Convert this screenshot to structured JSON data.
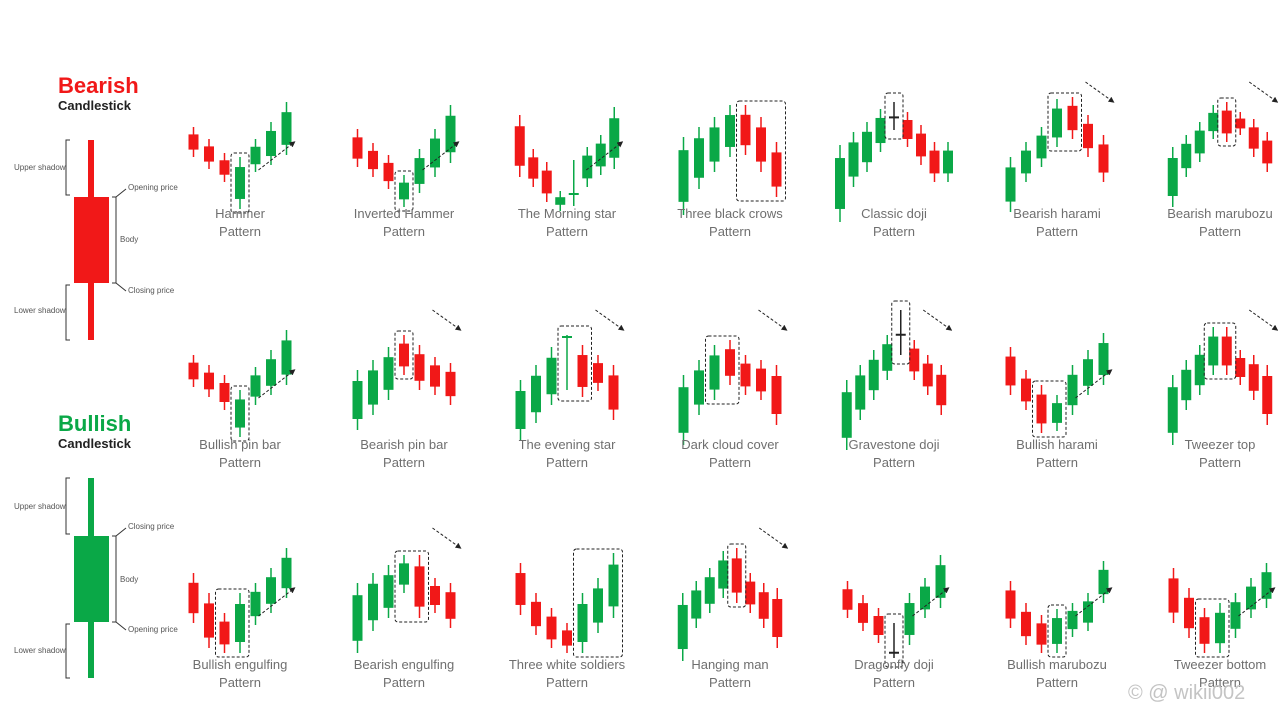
{
  "colors": {
    "bull": "#0aa847",
    "bear": "#f11818",
    "text": "#6f6f6f"
  },
  "bearish": {
    "title": "Bearish",
    "subtitle": "Candlestick",
    "upper_shadow": "Upper shadow",
    "lower_shadow": "Lower shadow",
    "top_price": "Opening price",
    "bottom_price": "Closing price",
    "body": "Body"
  },
  "bullish": {
    "title": "Bullish",
    "subtitle": "Candlestick",
    "upper_shadow": "Upper shadow",
    "lower_shadow": "Lower shadow",
    "top_price": "Closing price",
    "bottom_price": "Opening price",
    "body": "Body"
  },
  "patterns": [
    {
      "name": "Hammer",
      "sub": "Pattern",
      "arrow": "up",
      "candles": "r:10-30,r:22-42,r:36-55,g:40-82h,g:22-45,g:5-38,g:-15-28"
    },
    {
      "name": "Inverted Hammer",
      "sub": "Pattern",
      "arrow": "up",
      "candles": "r:12-40,r:26-50,r:38-62,g:58-80h,g:32-66,g:12-50,g:-12-36"
    },
    {
      "name": "The Morning star",
      "sub": "Pattern",
      "arrow": "up",
      "candles": "r:-2-50,r:32-60,r:45-75,g:74-84,G:38-84,g:30-60,g:18-48,g:-10-42"
    },
    {
      "name": "Three black crows",
      "sub": "Pattern",
      "arrow": "none",
      "candles": "g:20-88,g:10-62,g:0-45,g:-12-30,r:-12-28h,r:0-45h,r:25-70h"
    },
    {
      "name": "Classic doji",
      "sub": "Pattern",
      "arrow": "none",
      "candles": "g:28-95,g:15-60,g:5-45,g:-8-25,d:-20-8h,r:-5-20,r:8-38,r:25-55,g:25-55"
    },
    {
      "name": "Bearish harami",
      "sub": "Pattern",
      "arrow": "down",
      "candles": "g:40-85,g:25-55,g:10-40,g:-18-20h,r:-20-12h,r:-2-30,r:18-55"
    },
    {
      "name": "Bearish marubozu",
      "sub": "Pattern",
      "arrow": "down",
      "candles": "g:30-80,g:18-50,g:5-35,g:-12-12,r:-15-15h,r:-5-8,r:2-30,r:15-45"
    },
    {
      "name": "Bullish pin bar",
      "sub": "Pattern",
      "arrow": "up",
      "candles": "r:10-32,r:20-42,r:30-55,g:45-82h,g:22-50,g:5-40,g:-15-30"
    },
    {
      "name": "Bearish pin bar",
      "sub": "Pattern",
      "arrow": "down",
      "candles": "g:25-75,g:15-60,g:2-45,r:-10-20h,r:0-35,r:12-40,r:18-50"
    },
    {
      "name": "The evening star",
      "sub": "Pattern",
      "arrow": "down",
      "candles": "g:35-85,g:20-68,g:2-50,D:-15-40h,r:0-42h,r:10-36,r:20-65"
    },
    {
      "name": "Dark cloud cover",
      "sub": "Pattern",
      "arrow": "down",
      "candles": "g:30-90,g:15-60,g:0-45h,r:-5-30h,r:10-40,r:15-45,r:20-70"
    },
    {
      "name": "Gravestone doji",
      "sub": "Pattern",
      "arrow": "down",
      "candles": "g:35-95,g:20-65,g:5-45,g:-10-25,d:-40-5h,r:-5-25,r:10-40,r:20-60"
    },
    {
      "name": "Bullish harami",
      "sub": "Pattern",
      "arrow": "up",
      "candles": "r:2-40,r:25-55,r:40-78h,g:50-76h,g:20-60,g:5-40,g:-12-30"
    },
    {
      "name": "Tweezer top",
      "sub": "Pattern",
      "arrow": "down",
      "candles": "g:30-90,g:15-55,g:0-40,g:-18-20h,r:-18-20h,r:5-30,r:10-45,r:20-70"
    },
    {
      "name": "Bullish engulfing",
      "sub": "Pattern",
      "arrow": "up",
      "candles": "r:10-50,r:30-75,r:50-80h,g:30-80h,g:20-52,g:5-40,g:-15-25"
    },
    {
      "name": "Bearish engulfing",
      "sub": "Pattern",
      "arrow": "down",
      "candles": "g:20-80,g:10-58,g:2-45,g:-8-20h,r:-8-45h,r:15-40,r:20-55"
    },
    {
      "name": "Three white soldiers",
      "sub": "Pattern",
      "arrow": "none",
      "candles": "r:0-42,r:30-62,r:45-75,r:60-80,g:30-80h,g:15-60h,g:-10-45h"
    },
    {
      "name": "Hanging man",
      "sub": "Pattern",
      "arrow": "down",
      "candles": "g:30-88,g:18-55,g:5-40,g:-12-25,r:-15-30h,r:10-40,r:20-55,r:25-75"
    },
    {
      "name": "Dragonfly doji",
      "sub": "Pattern",
      "arrow": "up",
      "candles": "r:18-45,r:32-58,r:45-70,d:55-90h,g:30-72,g:15-45,g:-8-35"
    },
    {
      "name": "Bullish marubozu",
      "sub": "Pattern",
      "arrow": "up",
      "candles": "r:18-55,r:40-72,r:52-80,g:46-80h,g:40-64,g:30-58,g:-2-30"
    },
    {
      "name": "Tweezer bottom",
      "sub": "Pattern",
      "arrow": "up",
      "candles": "r:5-50,r:25-65,r:45-80h,g:40-80h,g:30-65,g:15-45,g:0-35"
    }
  ],
  "watermark": "© @ wikii002"
}
